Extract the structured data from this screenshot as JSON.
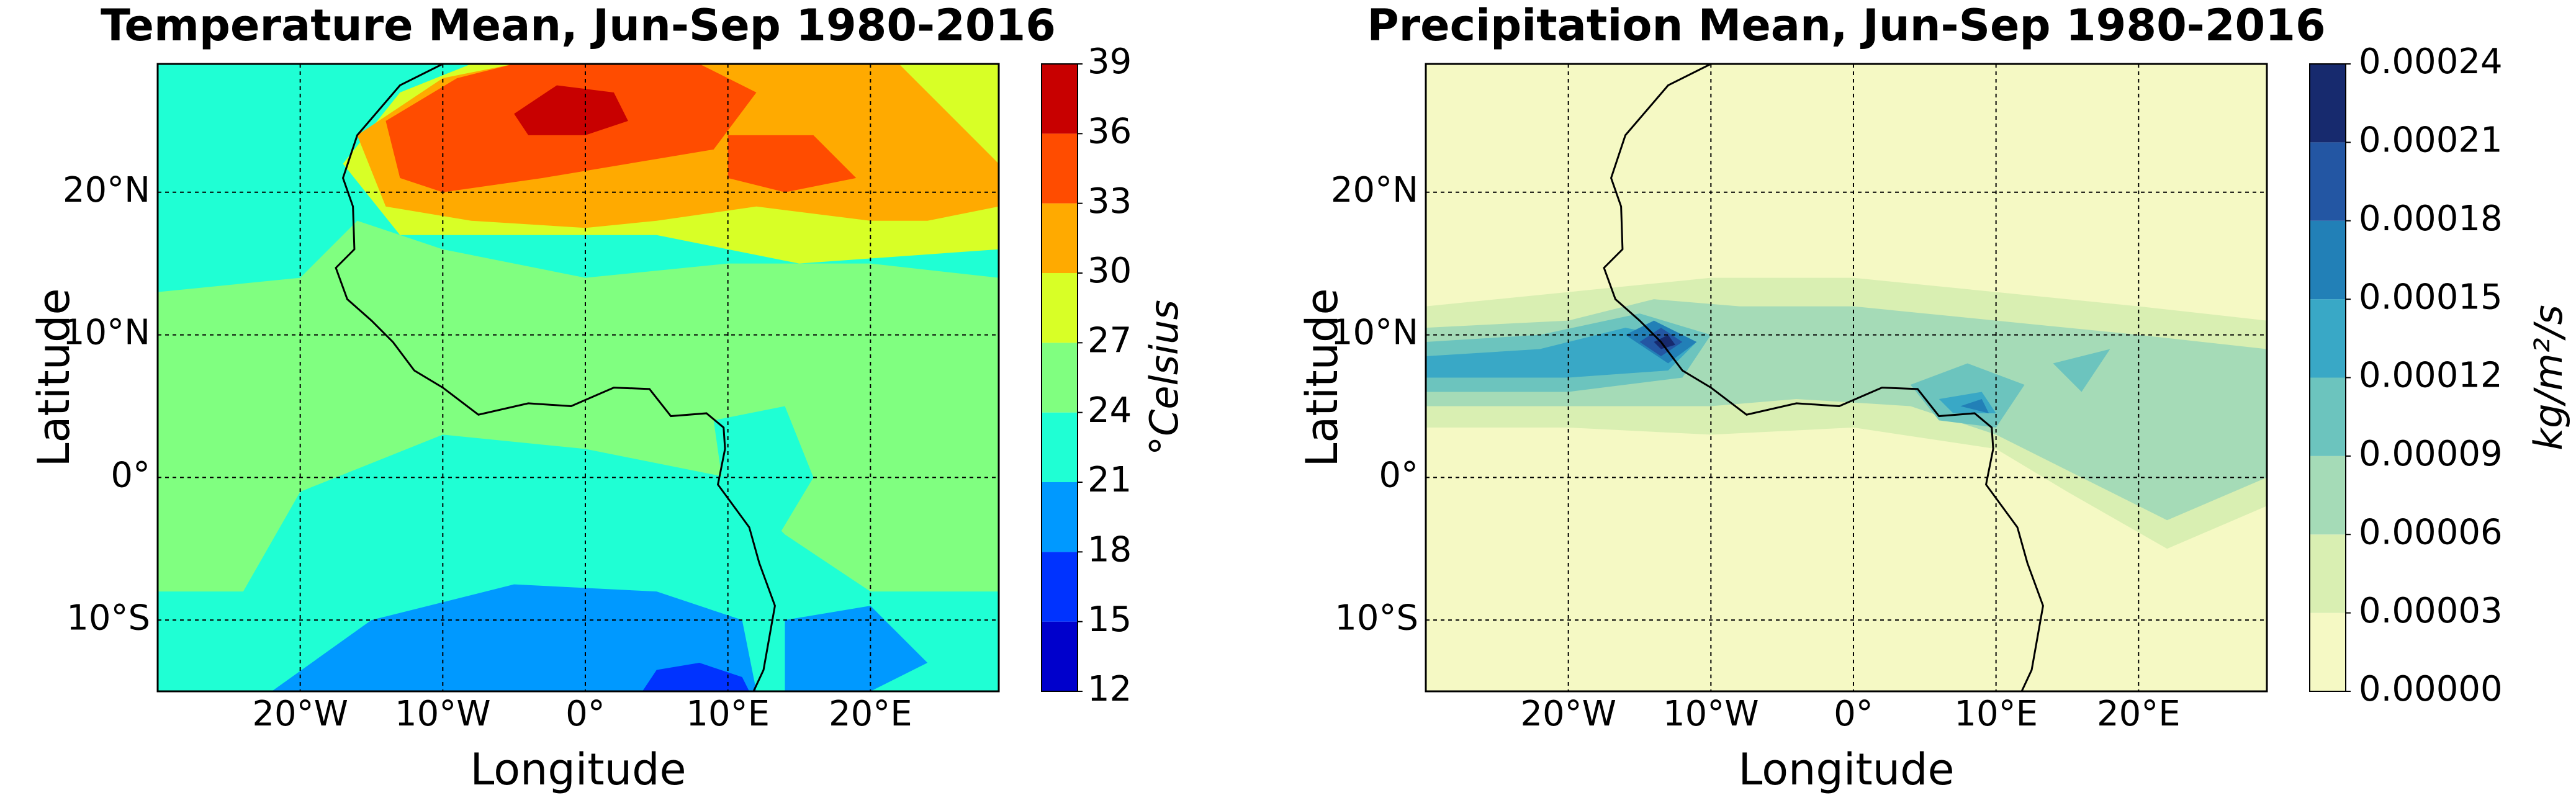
{
  "chart_data": [
    {
      "type": "filled-contour-map",
      "title": "Temperature Mean, Jun-Sep 1980-2016",
      "x_label": "Longitude",
      "y_label": "Latitude",
      "xlim": [
        -30,
        29
      ],
      "ylim": [
        -15,
        29
      ],
      "xticks": [
        {
          "value": -20,
          "label": "20°W"
        },
        {
          "value": -10,
          "label": "10°W"
        },
        {
          "value": 0,
          "label": "0°"
        },
        {
          "value": 10,
          "label": "10°E"
        },
        {
          "value": 20,
          "label": "20°E"
        }
      ],
      "yticks": [
        {
          "value": -10,
          "label": "10°S"
        },
        {
          "value": 0,
          "label": "0°"
        },
        {
          "value": 10,
          "label": "10°N"
        },
        {
          "value": 20,
          "label": "20°N"
        }
      ],
      "grid": true,
      "colorbar": {
        "label": "°Celsius",
        "levels": [
          12,
          15,
          18,
          21,
          24,
          27,
          30,
          33,
          36,
          39
        ],
        "colors": [
          "#0000cc",
          "#0033ff",
          "#0099ff",
          "#1fffd4",
          "#80ff80",
          "#d8ff26",
          "#ffaa00",
          "#ff4c00",
          "#c80000"
        ]
      }
    },
    {
      "type": "filled-contour-map",
      "title": "Precipitation Mean, Jun-Sep 1980-2016",
      "x_label": "Longitude",
      "y_label": "Latitude",
      "xlim": [
        -30,
        29
      ],
      "ylim": [
        -15,
        29
      ],
      "xticks": [
        {
          "value": -20,
          "label": "20°W"
        },
        {
          "value": -10,
          "label": "10°W"
        },
        {
          "value": 0,
          "label": "0°"
        },
        {
          "value": 10,
          "label": "10°E"
        },
        {
          "value": 20,
          "label": "20°E"
        }
      ],
      "yticks": [
        {
          "value": -10,
          "label": "10°S"
        },
        {
          "value": 0,
          "label": "0°"
        },
        {
          "value": 10,
          "label": "10°N"
        },
        {
          "value": 20,
          "label": "20°N"
        }
      ],
      "grid": true,
      "colorbar": {
        "label": "kg/m²/s",
        "levels": [
          {
            "value": 0,
            "label": "0.00000"
          },
          3e-05,
          6e-05,
          9e-05,
          0.00012,
          0.00015,
          0.00018,
          0.00021,
          0.00024
        ],
        "colors": [
          "#f5f9c4",
          "#d9efb2",
          "#a5dbb7",
          "#6cc4be",
          "#39a8c6",
          "#2280b7",
          "#2356a3",
          "#172a6e"
        ]
      }
    }
  ]
}
